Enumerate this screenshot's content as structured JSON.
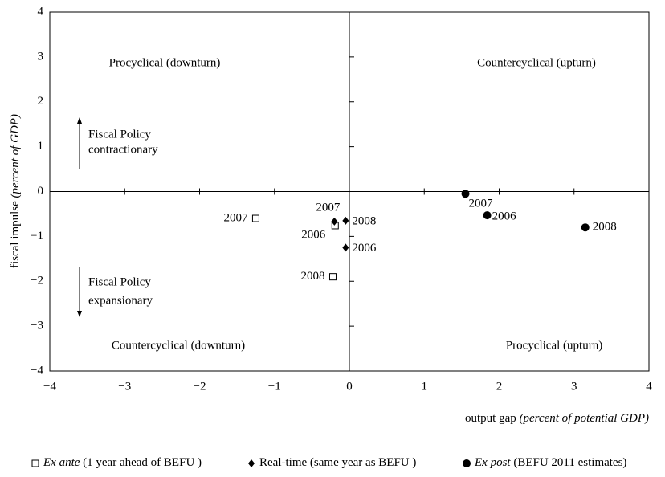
{
  "chart_data": {
    "type": "scatter",
    "x_label": "output gap",
    "x_label_note": "(percent of potential GDP)",
    "y_label": "fiscal impulse",
    "y_label_note": "(percent of GDP)",
    "xlim": [
      -4,
      4
    ],
    "ylim": [
      -4,
      4
    ],
    "xticks": [
      {
        "value": -4,
        "label": "−4"
      },
      {
        "value": -3,
        "label": "−3"
      },
      {
        "value": -2,
        "label": "−2"
      },
      {
        "value": -1,
        "label": "−1"
      },
      0,
      1,
      2,
      3,
      4
    ],
    "yticks": [
      {
        "value": -4,
        "label": "−4"
      },
      {
        "value": -3,
        "label": "−3"
      },
      {
        "value": -2,
        "label": "−2"
      },
      {
        "value": -1,
        "label": "−1"
      },
      0,
      1,
      2,
      3,
      4
    ],
    "annotations": [
      "Procyclical (downturn)",
      "Countercyclical (upturn)",
      "Countercyclical (downturn)",
      "Procyclical (upturn)",
      "Fiscal Policy",
      "contractionary",
      "Fiscal Policy",
      "expansionary"
    ],
    "series": [
      {
        "name": "Ex ante",
        "description": "(1 year ahead of BEFU )",
        "marker": "square",
        "color": "#000000",
        "labels": [
          "2007",
          "2006",
          "2008"
        ],
        "x": [
          -1.25,
          -0.19,
          -0.22
        ],
        "values": [
          -0.6,
          -0.76,
          -1.9
        ]
      },
      {
        "name": "Real-time",
        "description": "(same year as BEFU )",
        "marker": "diamond",
        "color": "#000000",
        "labels": [
          "2007",
          "2008",
          "2006"
        ],
        "x": [
          -0.2,
          -0.05,
          -0.05
        ],
        "values": [
          -0.67,
          -0.65,
          -1.25
        ]
      },
      {
        "name": "Ex post",
        "description": "(BEFU 2011 estimates)",
        "marker": "circle",
        "color": "#000000",
        "labels": [
          "2007",
          "2006",
          "2008"
        ],
        "x": [
          1.55,
          1.84,
          3.15
        ],
        "values": [
          -0.05,
          -0.53,
          -0.8
        ]
      }
    ]
  }
}
